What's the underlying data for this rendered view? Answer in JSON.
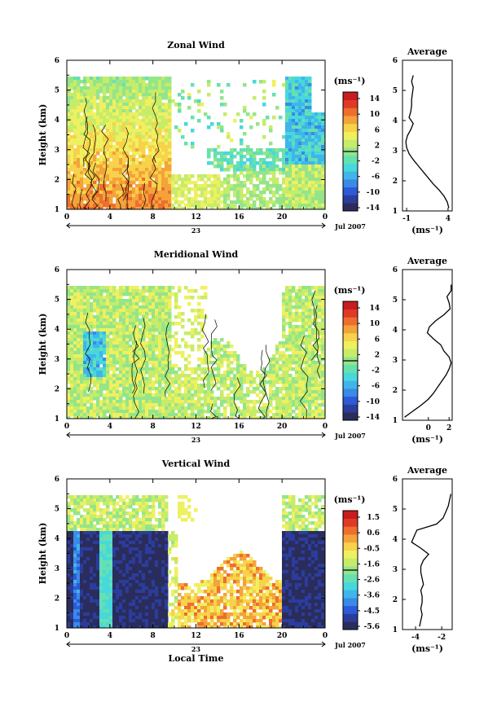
{
  "common": {
    "x_ticks": [
      "0",
      "4",
      "8",
      "12",
      "16",
      "20",
      "0"
    ],
    "date_day": "23",
    "date_month": "Jul 2007",
    "y_ticks": [
      "1",
      "2",
      "3",
      "4",
      "5",
      "6"
    ],
    "ylabel": "Height (km)",
    "xlabel": "Local Time",
    "unit_label": "(ms⁻¹)",
    "avg_unit": "(ms⁻¹)",
    "avg_title": "Average",
    "colormap": [
      "#2a2d5c",
      "#2b3c9c",
      "#2d5ad6",
      "#3a8ae8",
      "#3fb5ea",
      "#47d8dc",
      "#66e0b0",
      "#94e58a",
      "#c6ec6a",
      "#eff060",
      "#f7d24a",
      "#f4a33a",
      "#ee6e2e",
      "#e03a26",
      "#c81c1e"
    ]
  },
  "chart_data": [
    {
      "type": "heatmap",
      "title": "Zonal Wind",
      "xlabel": "",
      "ylabel": "Height (km)",
      "xlim": [
        0,
        24
      ],
      "ylim": [
        1,
        6
      ],
      "colorbar": {
        "label": "(ms⁻¹)",
        "ticks": [
          "14",
          "10",
          "6",
          "2",
          "-2",
          "-6",
          "-10",
          "-14"
        ],
        "range": [
          -16,
          16
        ]
      },
      "description_values": {
        "hours_0_9": "mostly 2 to 10, peaks near 10 below 2.5 km",
        "hours_20_24": "mostly -2 to -10 above 2 km"
      },
      "average_profile": {
        "title": "Average",
        "x_ticks": [
          "-1",
          "4"
        ],
        "xlim": [
          -1.5,
          4.5
        ],
        "height": [
          1.1,
          1.3,
          1.5,
          1.7,
          1.9,
          2.1,
          2.3,
          2.5,
          2.7,
          2.9,
          3.1,
          3.3,
          3.5,
          3.7,
          3.9,
          4.1,
          4.3,
          4.5,
          4.7,
          4.9,
          5.1,
          5.3,
          5.5
        ],
        "value": [
          4.1,
          3.9,
          3.5,
          2.9,
          2.2,
          1.6,
          1.0,
          0.4,
          -0.2,
          -0.7,
          -1.0,
          -1.1,
          -0.9,
          -0.5,
          -0.2,
          -0.7,
          -0.5,
          -0.4,
          -0.4,
          -0.3,
          -0.2,
          -0.4,
          -0.2
        ]
      }
    },
    {
      "type": "heatmap",
      "title": "Meridional Wind",
      "xlabel": "",
      "ylabel": "Height (km)",
      "xlim": [
        0,
        24
      ],
      "ylim": [
        1,
        6
      ],
      "colorbar": {
        "label": "(ms⁻¹)",
        "ticks": [
          "14",
          "10",
          "6",
          "2",
          "-2",
          "-6",
          "-10",
          "-14"
        ],
        "range": [
          -16,
          16
        ]
      },
      "description_values": {
        "hours_0_9": "mostly -2 to 4, minima near -10 around 3 km",
        "hours_9_24": "mostly 0 to 4"
      },
      "average_profile": {
        "title": "Average",
        "x_ticks": [
          "0",
          "2"
        ],
        "xlim": [
          -2.5,
          2.3
        ],
        "height": [
          1.1,
          1.3,
          1.5,
          1.7,
          1.9,
          2.1,
          2.3,
          2.5,
          2.7,
          2.9,
          3.1,
          3.3,
          3.5,
          3.7,
          3.9,
          4.1,
          4.3,
          4.5,
          4.7,
          4.9,
          5.1,
          5.3,
          5.5
        ],
        "value": [
          -2.3,
          -1.5,
          -0.7,
          0.0,
          0.5,
          0.9,
          1.3,
          1.7,
          2.0,
          2.2,
          2.0,
          1.5,
          1.2,
          0.5,
          -0.1,
          0.1,
          0.7,
          1.5,
          2.1,
          2.0,
          1.8,
          2.2,
          2.2
        ]
      }
    },
    {
      "type": "heatmap",
      "title": "Vertical Wind",
      "xlabel": "Local Time",
      "ylabel": "Height (km)",
      "xlim": [
        0,
        24
      ],
      "ylim": [
        1,
        6
      ],
      "colorbar": {
        "label": "(ms⁻¹)",
        "ticks": [
          "1.5",
          "0.6",
          "-0.5",
          "-1.6",
          "-2.6",
          "-3.6",
          "-4.5",
          "-5.6"
        ],
        "range": [
          -6,
          2
        ]
      },
      "description_values": {
        "hours_0_9": "strong downward, about -5.6 below 4.3 km",
        "hours_10_19": "near 0 below 3.5 km",
        "hours_19_24": "strong downward, about -5.6 below 4.3 km"
      },
      "average_profile": {
        "title": "Average",
        "x_ticks": [
          "-4",
          "-2"
        ],
        "xlim": [
          -5,
          -1.2
        ],
        "height": [
          1.1,
          1.3,
          1.5,
          1.7,
          1.9,
          2.1,
          2.3,
          2.5,
          2.7,
          2.9,
          3.1,
          3.3,
          3.5,
          3.7,
          3.9,
          4.1,
          4.3,
          4.5,
          4.7,
          4.9,
          5.1,
          5.3,
          5.5
        ],
        "value": [
          -3.7,
          -3.6,
          -3.5,
          -3.6,
          -3.5,
          -3.5,
          -3.6,
          -3.4,
          -3.5,
          -3.6,
          -3.6,
          -3.4,
          -3.0,
          -3.6,
          -4.3,
          -4.1,
          -3.9,
          -2.4,
          -1.9,
          -1.7,
          -1.5,
          -1.4,
          -1.3
        ]
      }
    }
  ]
}
